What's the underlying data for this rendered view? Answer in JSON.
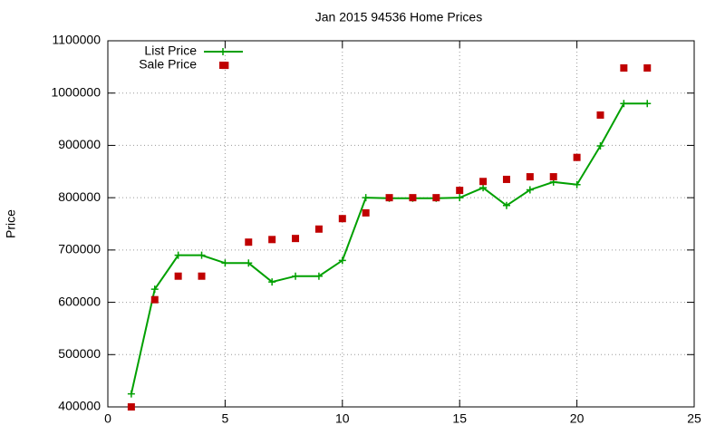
{
  "chart_data": {
    "type": "line",
    "title": "Jan 2015 94536 Home Prices",
    "y_label": "Price",
    "x": [
      1,
      2,
      3,
      4,
      5,
      6,
      7,
      8,
      9,
      10,
      11,
      12,
      13,
      14,
      15,
      16,
      17,
      18,
      19,
      20,
      21,
      22,
      23
    ],
    "series": [
      {
        "name": "List Price",
        "color": "#00a000",
        "mode": "linespoints",
        "values": [
          425000,
          625000,
          690000,
          690000,
          675000,
          675000,
          639000,
          650000,
          650000,
          680000,
          800000,
          799000,
          799000,
          799000,
          800000,
          819000,
          785000,
          815000,
          830000,
          825000,
          899000,
          980000,
          980000
        ]
      },
      {
        "name": "Sale Price",
        "color": "#c00000",
        "mode": "points",
        "values": [
          400000,
          605000,
          650000,
          650000,
          1053000,
          715000,
          720000,
          722000,
          740000,
          760000,
          771000,
          800000,
          800000,
          800000,
          814000,
          831000,
          835000,
          840000,
          840000,
          877000,
          958000,
          1048000,
          1048000
        ]
      }
    ],
    "xlim": [
      0,
      25
    ],
    "xticks": [
      0,
      5,
      10,
      15,
      20,
      25
    ],
    "ylim": [
      400000,
      1100000
    ],
    "yticks": [
      400000,
      500000,
      600000,
      700000,
      800000,
      900000,
      1000000,
      1100000
    ],
    "grid": true,
    "legend": "top-left"
  }
}
